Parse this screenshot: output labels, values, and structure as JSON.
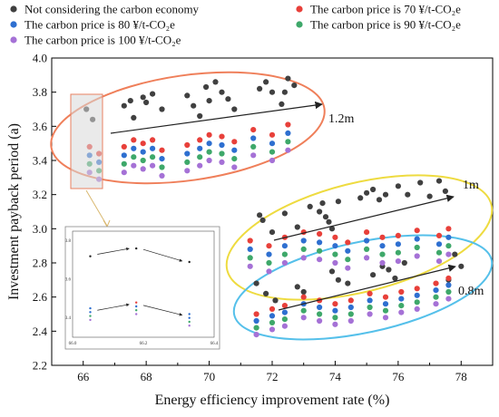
{
  "chart_data": {
    "type": "scatter",
    "title": "",
    "xlabel": "Energy efficiency improvement rate (%)",
    "ylabel": "Investment payback period (a)",
    "xlim": [
      65,
      79
    ],
    "ylim": [
      2.2,
      4.0
    ],
    "xticks": [
      "66",
      "68",
      "70",
      "72",
      "74",
      "76",
      "78"
    ],
    "yticks": [
      "2.2",
      "2.4",
      "2.6",
      "2.8",
      "3.0",
      "3.2",
      "3.4",
      "3.6",
      "3.8",
      "4.0"
    ],
    "legend": {
      "placement": "top",
      "entries": [
        {
          "label": "Not considering the carbon economy",
          "color": "#404040"
        },
        {
          "label": "The carbon price is 70 ¥/t-CO₂e",
          "color": "#e8403a"
        },
        {
          "label": "The carbon price is 80 ¥/t-CO₂e",
          "color": "#2e6fd0"
        },
        {
          "label": "The carbon price is 90 ¥/t-CO₂e",
          "color": "#3ea86a"
        },
        {
          "label": "The carbon price is 100 ¥/t-CO₂e",
          "color": "#a571d6"
        }
      ]
    },
    "series": [
      {
        "name": "Not considering the carbon economy",
        "color": "#404040",
        "x": [
          66.1,
          66.3,
          67.3,
          67.5,
          67.6,
          67.9,
          68.0,
          68.2,
          68.5,
          69.3,
          69.5,
          69.7,
          69.9,
          70.0,
          70.2,
          70.4,
          70.6,
          70.8,
          71.6,
          71.8,
          72.0,
          72.3,
          72.4,
          72.5,
          72.7,
          71.6,
          71.7,
          72.0,
          72.4,
          72.8,
          73.2,
          73.5,
          73.6,
          73.7,
          73.8,
          73.9,
          74.1,
          74.8,
          75.0,
          75.2,
          75.4,
          75.6,
          76.0,
          76.3,
          76.7,
          77.0,
          77.3,
          77.5,
          71.5,
          71.8,
          72.1,
          72.8,
          73.0,
          73.9,
          74.1,
          74.4,
          75.2,
          75.5,
          75.7,
          75.9,
          76.2,
          77.6,
          77.8,
          78.0
        ],
        "y": [
          3.7,
          3.64,
          3.72,
          3.75,
          3.65,
          3.77,
          3.74,
          3.79,
          3.7,
          3.78,
          3.72,
          3.66,
          3.83,
          3.75,
          3.86,
          3.8,
          3.76,
          3.7,
          3.82,
          3.86,
          3.8,
          3.73,
          3.8,
          3.88,
          3.84,
          3.08,
          3.05,
          2.98,
          3.09,
          3.01,
          3.13,
          3.1,
          3.15,
          3.07,
          3.04,
          3.0,
          3.16,
          3.18,
          3.21,
          3.23,
          3.17,
          3.2,
          3.25,
          3.2,
          3.27,
          3.19,
          3.28,
          3.22,
          2.68,
          2.62,
          2.58,
          2.66,
          2.63,
          2.75,
          2.7,
          2.68,
          2.73,
          2.78,
          2.76,
          2.71,
          2.8,
          2.7,
          2.85,
          2.78
        ]
      },
      {
        "name": "The carbon price is 70 ¥/t-CO₂e",
        "color": "#e8403a",
        "x": [
          66.2,
          66.5,
          67.3,
          67.6,
          67.9,
          68.2,
          68.5,
          69.3,
          69.7,
          70.0,
          70.4,
          70.8,
          71.4,
          72.0,
          72.5,
          71.3,
          71.9,
          72.4,
          73.0,
          73.5,
          74.0,
          74.4,
          75.0,
          75.5,
          76.0,
          76.6,
          77.3,
          77.6,
          71.5,
          72.0,
          72.4,
          73.0,
          73.5,
          74.0,
          74.5,
          75.1,
          75.6,
          76.1,
          76.6,
          77.2,
          77.6
        ],
        "y": [
          3.48,
          3.44,
          3.48,
          3.52,
          3.5,
          3.52,
          3.46,
          3.49,
          3.52,
          3.55,
          3.54,
          3.51,
          3.58,
          3.55,
          3.61,
          2.93,
          2.9,
          2.95,
          2.98,
          2.97,
          2.95,
          2.92,
          2.98,
          2.95,
          2.96,
          2.99,
          2.96,
          3.0,
          2.5,
          2.53,
          2.55,
          2.6,
          2.58,
          2.56,
          2.58,
          2.62,
          2.6,
          2.63,
          2.65,
          2.68,
          2.71
        ]
      },
      {
        "name": "The carbon price is 80 ¥/t-CO₂e",
        "color": "#2e6fd0",
        "x": [
          66.2,
          66.5,
          67.3,
          67.6,
          67.9,
          68.2,
          68.5,
          69.3,
          69.7,
          70.0,
          70.4,
          70.8,
          71.4,
          72.0,
          72.5,
          71.3,
          71.9,
          72.4,
          73.0,
          73.5,
          74.0,
          74.4,
          75.0,
          75.5,
          76.0,
          76.6,
          77.3,
          77.6,
          71.5,
          72.0,
          72.4,
          73.0,
          73.5,
          74.0,
          74.5,
          75.1,
          75.6,
          76.1,
          76.6,
          77.2,
          77.6
        ],
        "y": [
          3.43,
          3.39,
          3.43,
          3.47,
          3.45,
          3.47,
          3.41,
          3.44,
          3.47,
          3.5,
          3.49,
          3.46,
          3.53,
          3.5,
          3.56,
          2.88,
          2.85,
          2.9,
          2.93,
          2.92,
          2.9,
          2.87,
          2.93,
          2.9,
          2.91,
          2.94,
          2.91,
          2.95,
          2.46,
          2.49,
          2.51,
          2.56,
          2.54,
          2.52,
          2.54,
          2.58,
          2.56,
          2.59,
          2.61,
          2.64,
          2.67
        ]
      },
      {
        "name": "The carbon price is 90 ¥/t-CO₂e",
        "color": "#3ea86a",
        "x": [
          66.2,
          66.5,
          67.3,
          67.6,
          67.9,
          68.2,
          68.5,
          69.3,
          69.7,
          70.0,
          70.4,
          70.8,
          71.4,
          72.0,
          72.5,
          71.3,
          71.9,
          72.4,
          73.0,
          73.5,
          74.0,
          74.4,
          75.0,
          75.5,
          76.0,
          76.6,
          77.3,
          77.6,
          71.5,
          72.0,
          72.4,
          73.0,
          73.5,
          74.0,
          74.5,
          75.1,
          75.6,
          76.1,
          76.6,
          77.2,
          77.6
        ],
        "y": [
          3.38,
          3.34,
          3.38,
          3.42,
          3.4,
          3.42,
          3.36,
          3.39,
          3.42,
          3.45,
          3.44,
          3.41,
          3.48,
          3.45,
          3.51,
          2.83,
          2.8,
          2.85,
          2.88,
          2.87,
          2.85,
          2.82,
          2.88,
          2.85,
          2.86,
          2.89,
          2.86,
          2.9,
          2.42,
          2.45,
          2.47,
          2.52,
          2.5,
          2.48,
          2.5,
          2.54,
          2.52,
          2.55,
          2.57,
          2.6,
          2.63
        ]
      },
      {
        "name": "The carbon price is 100 ¥/t-CO₂e",
        "color": "#a571d6",
        "x": [
          66.2,
          66.5,
          67.3,
          67.6,
          67.9,
          68.2,
          68.5,
          69.3,
          69.7,
          70.0,
          70.4,
          70.8,
          71.4,
          72.0,
          72.5,
          71.3,
          71.9,
          72.4,
          73.0,
          73.5,
          74.0,
          74.4,
          75.0,
          75.5,
          76.0,
          76.6,
          77.3,
          77.6,
          71.5,
          72.0,
          72.4,
          73.0,
          73.5,
          74.0,
          74.5,
          75.1,
          75.6,
          76.1,
          76.6,
          77.2,
          77.6
        ],
        "y": [
          3.33,
          3.29,
          3.33,
          3.37,
          3.35,
          3.37,
          3.31,
          3.34,
          3.37,
          3.4,
          3.39,
          3.36,
          3.43,
          3.4,
          3.46,
          2.78,
          2.75,
          2.8,
          2.83,
          2.82,
          2.8,
          2.77,
          2.83,
          2.8,
          2.81,
          2.84,
          2.81,
          2.85,
          2.38,
          2.41,
          2.43,
          2.48,
          2.46,
          2.44,
          2.46,
          2.5,
          2.48,
          2.51,
          2.53,
          2.56,
          2.59
        ]
      }
    ],
    "annotations": [
      {
        "text": "1.2m",
        "color": "#e8633a"
      },
      {
        "text": "1m",
        "color": "#e8d12e"
      },
      {
        "text": "0.8m",
        "color": "#3ab0e0"
      }
    ],
    "inset": {
      "xticks": [
        "66.0",
        "66.2",
        "66.4"
      ],
      "yticks": [
        "3.8",
        "3.6",
        "3.4"
      ]
    }
  }
}
